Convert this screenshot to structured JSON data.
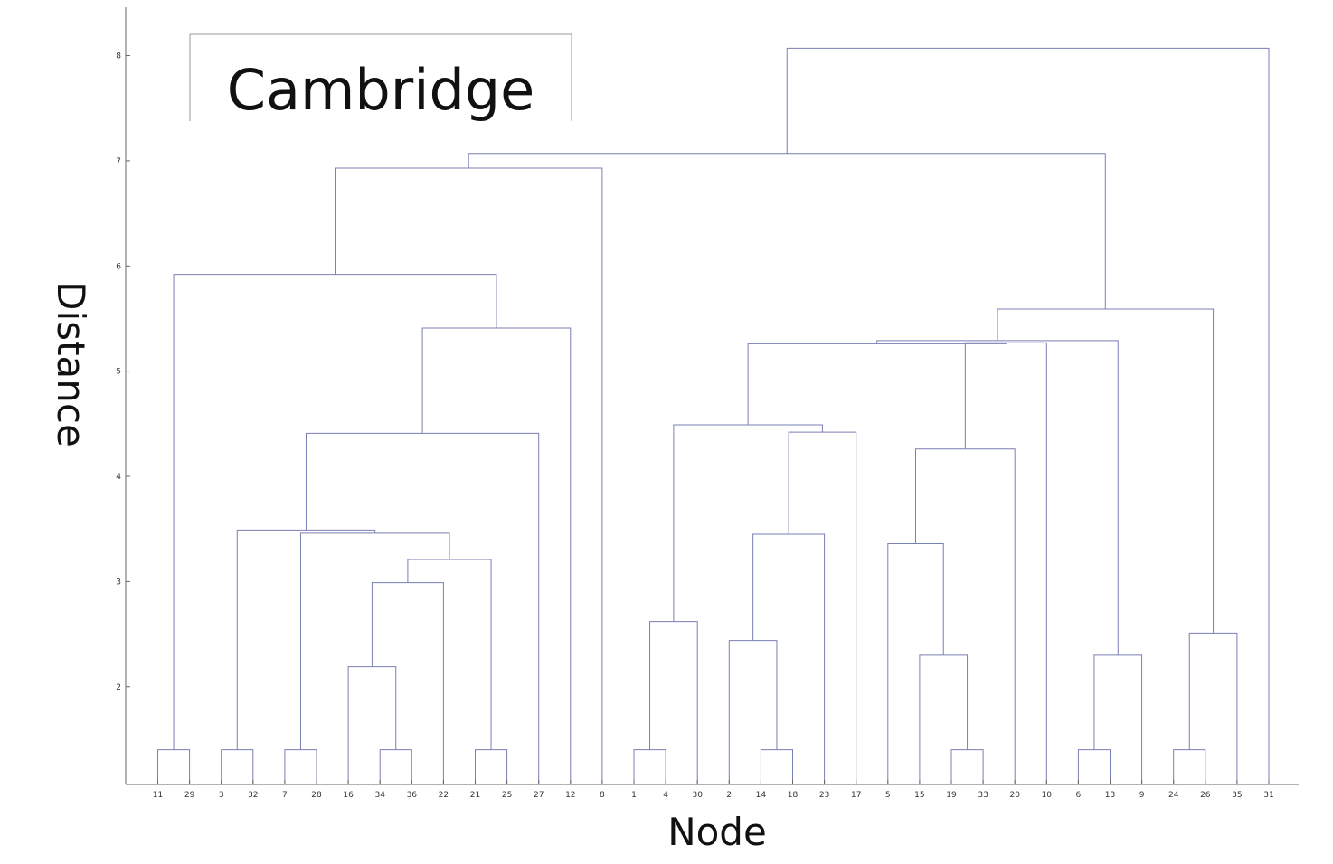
{
  "chart_data": {
    "type": "dendrogram",
    "overlay_title": "Cambridge",
    "xlabel": "Node",
    "ylabel": "Distance",
    "ylim": [
      1.07,
      8.46
    ],
    "yticks": [
      2,
      3,
      4,
      5,
      6,
      7,
      8
    ],
    "line_color": "#7a7fb4",
    "leaf_order": [
      "11",
      "29",
      "3",
      "32",
      "7",
      "28",
      "16",
      "34",
      "36",
      "22",
      "21",
      "25",
      "27",
      "12",
      "8",
      "1",
      "4",
      "30",
      "2",
      "14",
      "18",
      "23",
      "17",
      "5",
      "15",
      "19",
      "33",
      "20",
      "10",
      "6",
      "13",
      "9",
      "24",
      "26",
      "35",
      "31"
    ],
    "merges": [
      {
        "children": [
          "L0",
          "L1"
        ],
        "height": 1.4
      },
      {
        "children": [
          "L2",
          "L3"
        ],
        "height": 1.4
      },
      {
        "children": [
          "L4",
          "L5"
        ],
        "height": 1.4
      },
      {
        "children": [
          "L7",
          "L8"
        ],
        "height": 1.4
      },
      {
        "children": [
          "L10",
          "L11"
        ],
        "height": 1.4
      },
      {
        "children": [
          "L15",
          "L16"
        ],
        "height": 1.4
      },
      {
        "children": [
          "L19",
          "L20"
        ],
        "height": 1.4
      },
      {
        "children": [
          "L25",
          "L26"
        ],
        "height": 1.4
      },
      {
        "children": [
          "L29",
          "L30"
        ],
        "height": 1.4
      },
      {
        "children": [
          "L32",
          "L33"
        ],
        "height": 1.4
      },
      {
        "children": [
          "L6",
          "M3"
        ],
        "height": 2.19
      },
      {
        "children": [
          "M10",
          "L9"
        ],
        "height": 2.99
      },
      {
        "children": [
          "M11",
          "M4"
        ],
        "height": 3.21
      },
      {
        "children": [
          "M2",
          "M12"
        ],
        "height": 3.46
      },
      {
        "children": [
          "M1",
          "M13"
        ],
        "height": 3.49
      },
      {
        "children": [
          "M14",
          "L12"
        ],
        "height": 4.41
      },
      {
        "children": [
          "M15",
          "L13"
        ],
        "height": 5.41
      },
      {
        "children": [
          "M0",
          "M16"
        ],
        "height": 5.92
      },
      {
        "children": [
          "M17",
          "L14"
        ],
        "height": 6.93
      },
      {
        "children": [
          "M5",
          "L17"
        ],
        "height": 2.62
      },
      {
        "children": [
          "L18",
          "M6"
        ],
        "height": 2.44
      },
      {
        "children": [
          "M20",
          "L21"
        ],
        "height": 3.45
      },
      {
        "children": [
          "M21",
          "L22"
        ],
        "height": 4.42
      },
      {
        "children": [
          "M19",
          "M22"
        ],
        "height": 4.49
      },
      {
        "children": [
          "L24",
          "M7"
        ],
        "height": 2.3
      },
      {
        "children": [
          "L23",
          "M24"
        ],
        "height": 3.36
      },
      {
        "children": [
          "M25",
          "L27"
        ],
        "height": 4.26
      },
      {
        "children": [
          "M26",
          "L28"
        ],
        "height": 5.27
      },
      {
        "children": [
          "M23",
          "M27"
        ],
        "height": 5.26
      },
      {
        "children": [
          "M8",
          "L31"
        ],
        "height": 2.3
      },
      {
        "children": [
          "M28",
          "M29"
        ],
        "height": 5.29
      },
      {
        "children": [
          "M9",
          "L34"
        ],
        "height": 2.51
      },
      {
        "children": [
          "M30",
          "M31"
        ],
        "height": 5.59
      },
      {
        "children": [
          "M18",
          "M32"
        ],
        "height": 7.07
      },
      {
        "children": [
          "M33",
          "L35"
        ],
        "height": 8.07
      }
    ]
  }
}
